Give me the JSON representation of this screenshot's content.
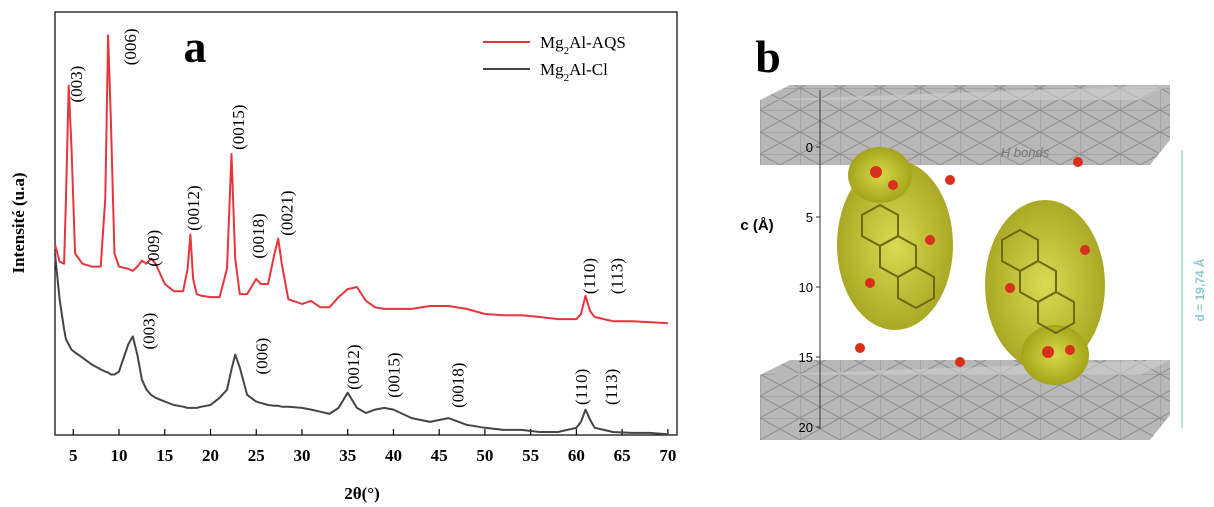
{
  "chart_data": {
    "type": "line",
    "panel_label": "a",
    "xlabel": "2θ(°)",
    "ylabel": "Intensité (u.a)",
    "xlim": [
      3,
      71
    ],
    "ylim": [
      0,
      100
    ],
    "xticks": [
      5,
      10,
      15,
      20,
      25,
      30,
      35,
      40,
      45,
      50,
      55,
      60,
      65,
      70
    ],
    "legend": "upper right",
    "x": [
      3,
      3.5,
      4,
      4.2,
      4.5,
      4.8,
      5.2,
      6,
      7,
      8,
      8.5,
      8.8,
      9.1,
      9.5,
      10,
      11,
      11.5,
      12,
      12.5,
      13,
      13.5,
      14,
      15,
      16,
      17,
      17.5,
      17.8,
      18.1,
      18.5,
      19,
      20,
      21,
      21.8,
      22.3,
      22.7,
      23.2,
      24,
      25,
      25.5,
      26.3,
      27,
      27.4,
      27.8,
      28.5,
      30,
      31,
      32,
      33,
      34,
      35,
      36,
      37,
      38,
      39,
      40,
      42,
      44,
      46,
      48,
      50,
      52,
      54,
      56,
      58,
      60,
      60.5,
      61,
      61.5,
      62,
      63,
      64,
      66,
      68,
      70
    ],
    "series": [
      {
        "name": "Mg2Al-AQS",
        "color": "#e8353a",
        "values": [
          45,
          41,
          40.5,
          56,
          82.6,
          67.9,
          42.9,
          40.5,
          39.8,
          39.8,
          56,
          94.5,
          75,
          42.9,
          39.8,
          39.3,
          38.8,
          39.8,
          41.2,
          40.5,
          41.7,
          40.5,
          35.7,
          34,
          34,
          39.3,
          47.4,
          36.9,
          33.3,
          32.9,
          32.6,
          32.6,
          39.3,
          66.4,
          41.7,
          33.3,
          33.3,
          36.9,
          35.7,
          35.7,
          42.9,
          46.4,
          40.5,
          32.1,
          31,
          31.7,
          30.2,
          30.2,
          32.6,
          34.5,
          35,
          31.7,
          30.2,
          29.8,
          29.8,
          29.8,
          30.5,
          30.5,
          29.8,
          28.6,
          28.3,
          28.3,
          27.9,
          27.4,
          27.4,
          28.6,
          32.9,
          29.3,
          27.9,
          27.4,
          26.9,
          26.9,
          26.7,
          26.4
        ]
      },
      {
        "name": "Mg2Al-Cl",
        "color": "#454545",
        "values": [
          42.9,
          32.1,
          25,
          22.6,
          21.4,
          20.2,
          19.5,
          18.3,
          16.7,
          15.5,
          15,
          14.8,
          14.3,
          14.3,
          15,
          21.4,
          23.3,
          19,
          13.1,
          10.7,
          9.5,
          8.8,
          7.9,
          7.1,
          6.7,
          6.4,
          6.4,
          6.4,
          6.4,
          6.7,
          7.1,
          8.8,
          10.7,
          15.5,
          19,
          15.95,
          9.5,
          7.9,
          7.6,
          7.1,
          6.9,
          6.9,
          6.7,
          6.7,
          6.4,
          6,
          5.5,
          5,
          6.4,
          10,
          6.4,
          5.2,
          6,
          6.4,
          6,
          4,
          3.1,
          4,
          2.4,
          1.7,
          1.2,
          1.2,
          0.7,
          0.7,
          1.7,
          3.1,
          6,
          3.6,
          1.7,
          1.2,
          0.7,
          0.5,
          0.5,
          0.2
        ]
      }
    ],
    "annotations": [
      {
        "text": "(003)",
        "x": 5.3,
        "y": 78.6
      },
      {
        "text": "(006)",
        "x": 11.2,
        "y": 87.4
      },
      {
        "text": "(009)",
        "x": 13.7,
        "y": 39.8
      },
      {
        "text": "(0012)",
        "x": 18.1,
        "y": 48.3
      },
      {
        "text": "(0015)",
        "x": 23,
        "y": 67.4
      },
      {
        "text": "(0018)",
        "x": 25.2,
        "y": 41.7
      },
      {
        "text": "(0021)",
        "x": 28.3,
        "y": 47.1
      },
      {
        "text": "(110)",
        "x": 61.4,
        "y": 33.3
      },
      {
        "text": "(113)",
        "x": 64.4,
        "y": 33.3
      },
      {
        "text": "(003)",
        "x": 13.2,
        "y": 20.2
      },
      {
        "text": "(006)",
        "x": 25.6,
        "y": 14.3
      },
      {
        "text": "(0012)",
        "x": 35.6,
        "y": 10.7
      },
      {
        "text": "(0015)",
        "x": 40,
        "y": 8.8
      },
      {
        "text": "(0018)",
        "x": 47,
        "y": 6.4
      },
      {
        "text": "(110)",
        "x": 60.5,
        "y": 7.1
      },
      {
        "text": "(113)",
        "x": 63.8,
        "y": 7.1
      }
    ]
  },
  "diagram": {
    "panel_label": "b",
    "axis_label": "c (Å)",
    "clim": [
      0,
      20
    ],
    "cticks": [
      0,
      5,
      10,
      15,
      20
    ],
    "h_bonds": "H bonds",
    "d_label": "d = 19,74 Å"
  }
}
